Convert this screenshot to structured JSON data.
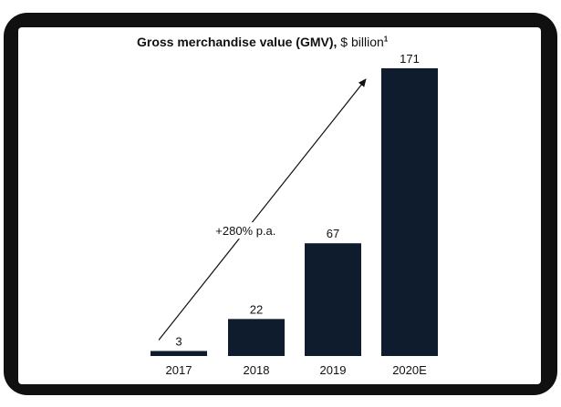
{
  "chart_data": {
    "type": "bar",
    "title": "Gross merchandise value (GMV),",
    "title_unit": "$ billion",
    "title_footnote": "1",
    "categories": [
      "2017",
      "2018",
      "2019",
      "2020E"
    ],
    "values": [
      3,
      22,
      67,
      171
    ],
    "data_labels": [
      "3",
      "22",
      "67",
      "171"
    ],
    "ylim": [
      0,
      171
    ],
    "grid": false,
    "legend": "none",
    "bar_color": "#0f1c2e",
    "annotation": {
      "text": "+280% p.a.",
      "type": "growth-arrow",
      "from_category": "2017",
      "to_category": "2020E"
    }
  },
  "colors": {
    "frame": "#101010",
    "screen": "#ffffff",
    "bar": "#0f1c2e",
    "text": "#111111"
  }
}
